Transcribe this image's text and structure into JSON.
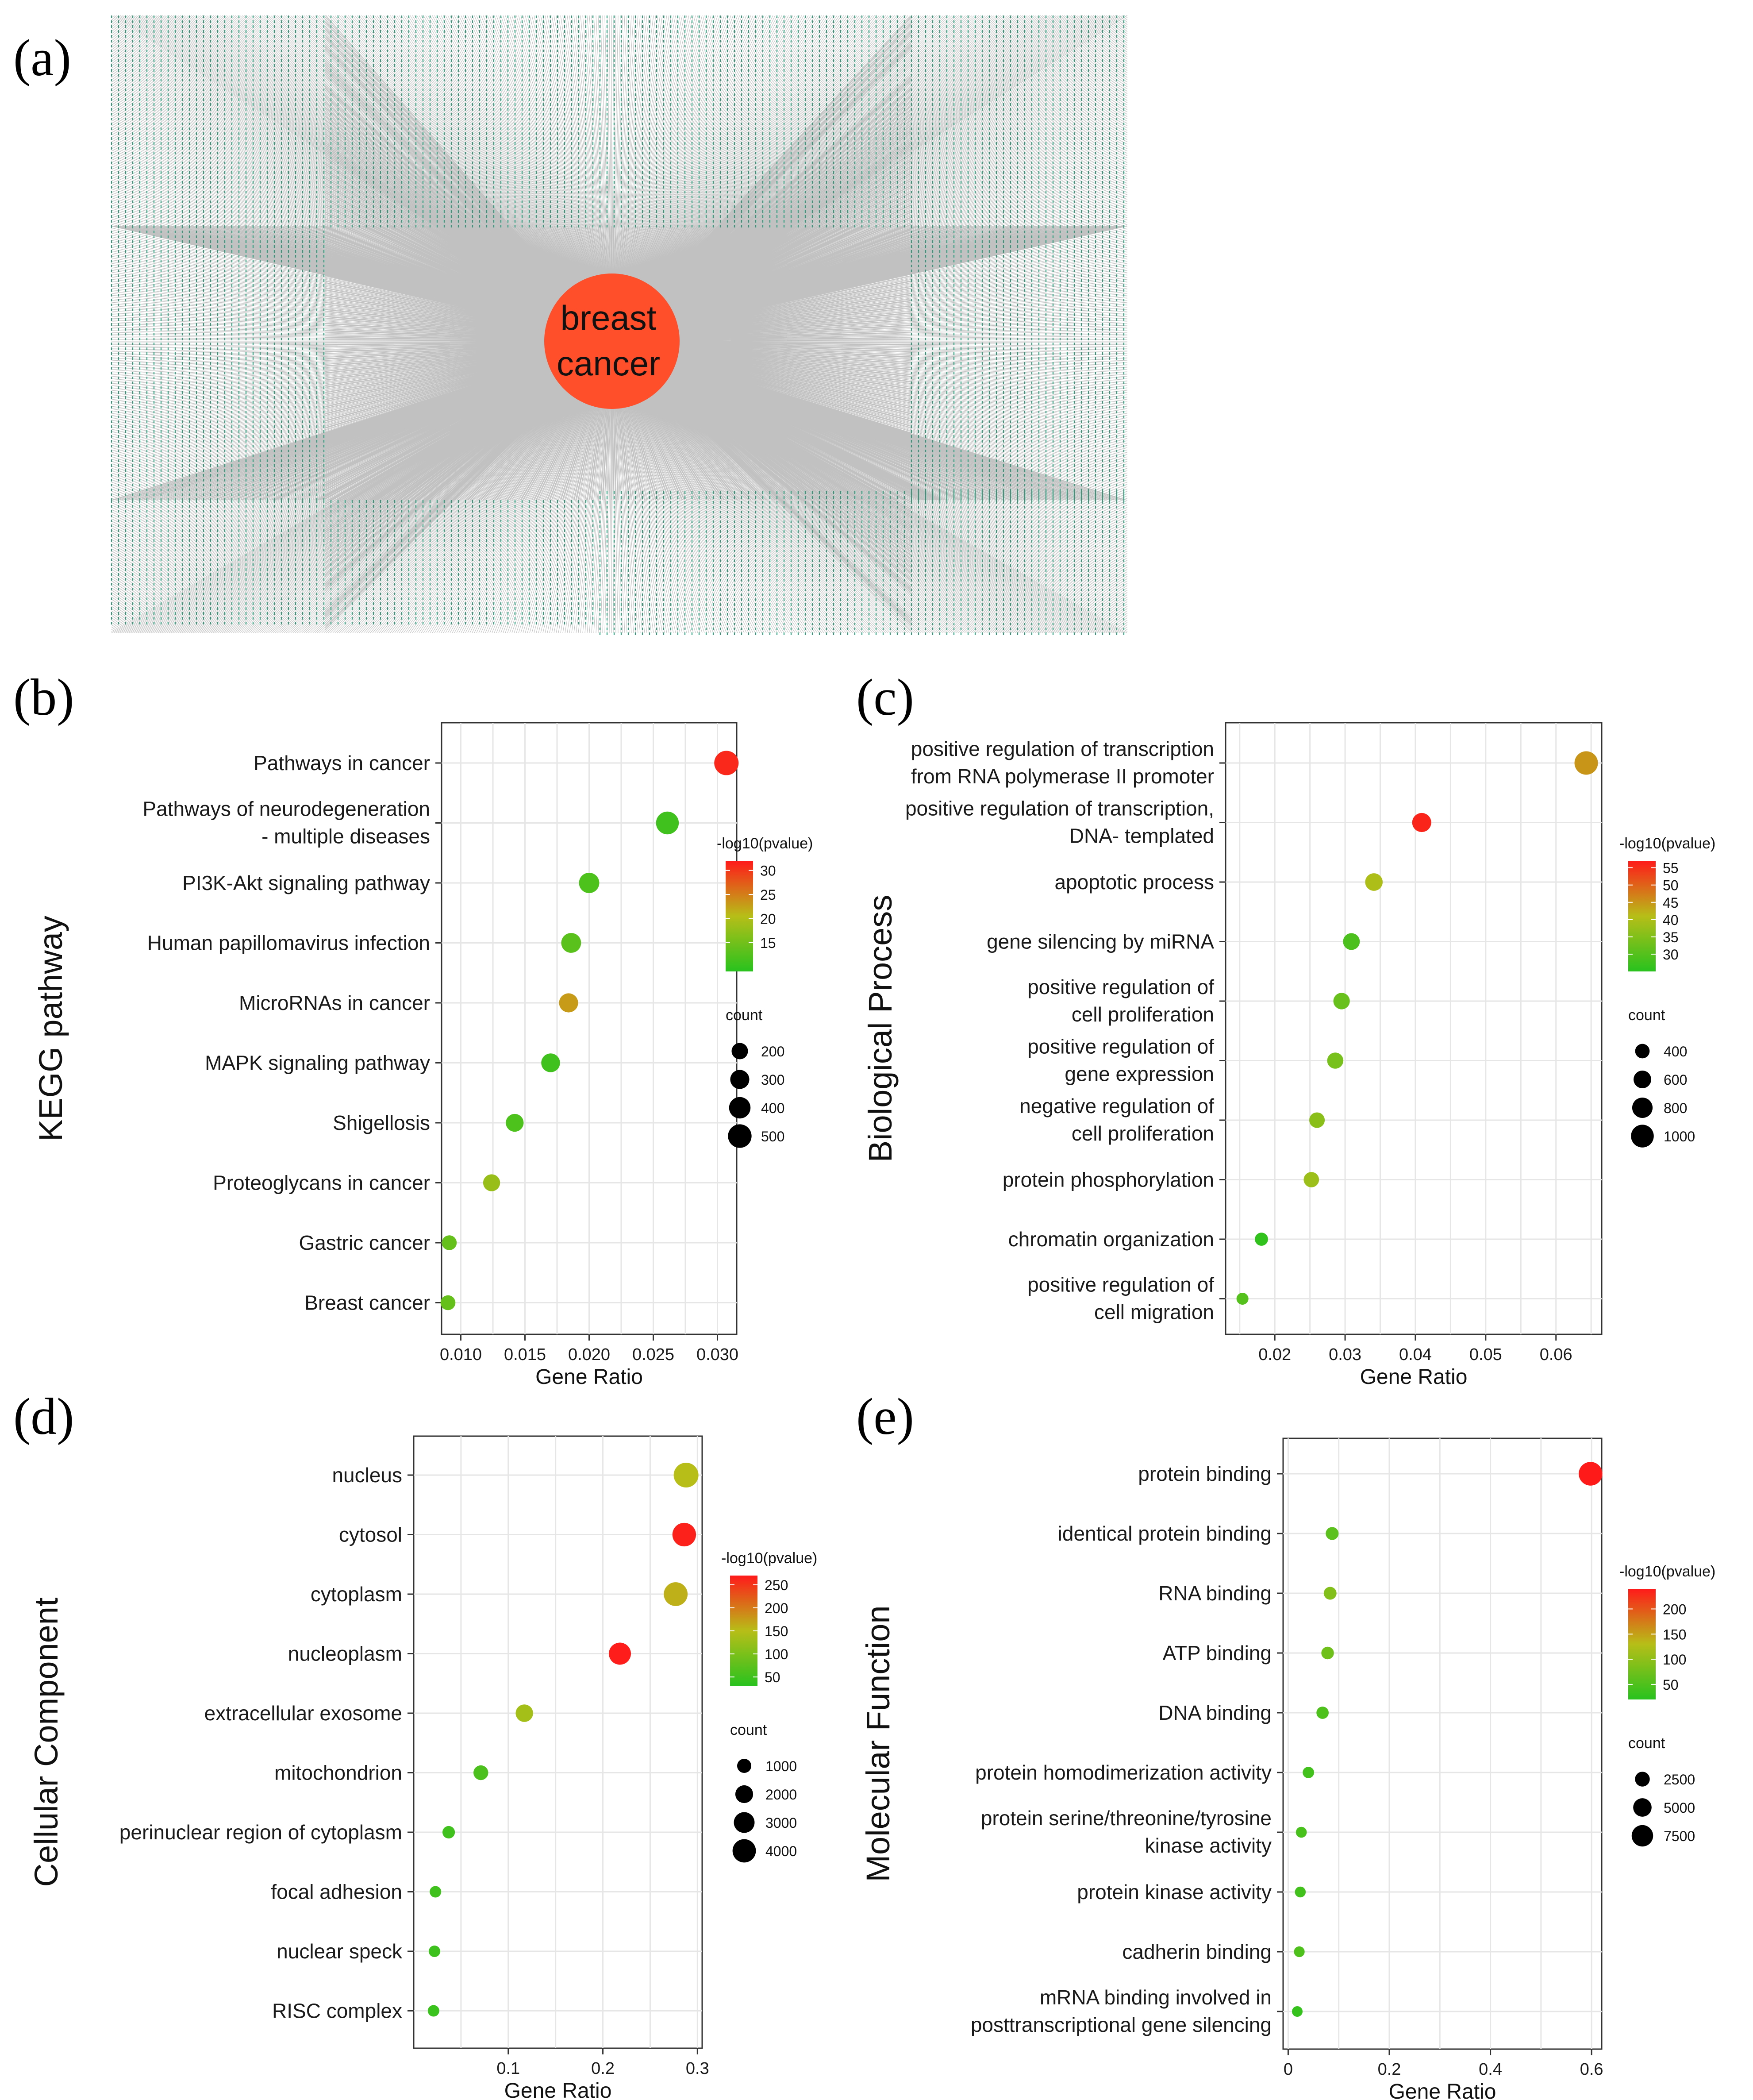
{
  "panel_a": {
    "letter": "(a)",
    "hub_label_line1": "breast",
    "hub_label_line2": "cancer",
    "hub_color": "#FF4E2A"
  },
  "colors": {
    "low": "#28C21E",
    "mid": "#B7BE18",
    "high": "#FF1A1A",
    "grid": "#E6E6E6"
  },
  "chart_data": [
    {
      "panel": "(b)",
      "type": "scatter",
      "ylabel": "KEGG pathway",
      "xlabel": "Gene Ratio",
      "xlim": [
        0.0085,
        0.0315
      ],
      "xticks": [
        0.01,
        0.015,
        0.02,
        0.025,
        0.03
      ],
      "xtick_labels": [
        "0.010",
        "0.015",
        "0.020",
        "0.025",
        "0.030"
      ],
      "color_title": "-log10(pvalue)",
      "color_range": [
        9,
        32
      ],
      "color_ticks": [
        15,
        20,
        25,
        30
      ],
      "size_title": "count",
      "size_range": [
        80,
        560
      ],
      "size_ticks": [
        200,
        300,
        400,
        500
      ],
      "points": [
        {
          "label": [
            "Pathways in cancer"
          ],
          "x": 0.0307,
          "count": 540,
          "p": 31
        },
        {
          "label": [
            "Pathways of neurodegeneration",
            "- multiple diseases"
          ],
          "x": 0.0261,
          "count": 460,
          "p": 11
        },
        {
          "label": [
            "PI3K-Akt signaling pathway"
          ],
          "x": 0.02,
          "count": 350,
          "p": 12
        },
        {
          "label": [
            "Human papillomavirus infection"
          ],
          "x": 0.0186,
          "count": 330,
          "p": 13
        },
        {
          "label": [
            "MicroRNAs in cancer"
          ],
          "x": 0.0184,
          "count": 300,
          "p": 23
        },
        {
          "label": [
            "MAPK signaling pathway"
          ],
          "x": 0.017,
          "count": 290,
          "p": 11
        },
        {
          "label": [
            "Shigellosis"
          ],
          "x": 0.0142,
          "count": 250,
          "p": 12
        },
        {
          "label": [
            "Proteoglycans in cancer"
          ],
          "x": 0.0124,
          "count": 220,
          "p": 18
        },
        {
          "label": [
            "Gastric cancer"
          ],
          "x": 0.0091,
          "count": 150,
          "p": 14
        },
        {
          "label": [
            "Breast cancer"
          ],
          "x": 0.009,
          "count": 150,
          "p": 14
        }
      ]
    },
    {
      "panel": "(c)",
      "type": "scatter",
      "ylabel": "Biological Process",
      "xlabel": "Gene Ratio",
      "xlim": [
        0.013,
        0.0665
      ],
      "xticks": [
        0.02,
        0.03,
        0.04,
        0.05,
        0.06
      ],
      "xtick_labels": [
        "0.02",
        "0.03",
        "0.04",
        "0.05",
        "0.06"
      ],
      "color_title": "-log10(pvalue)",
      "color_range": [
        25,
        57
      ],
      "color_ticks": [
        30,
        35,
        40,
        45,
        50,
        55
      ],
      "size_title": "count",
      "size_range": [
        250,
        1100
      ],
      "size_ticks": [
        400,
        600,
        800,
        1000
      ],
      "points": [
        {
          "label": [
            "positive regulation of transcription",
            "from RNA polymerase II promoter"
          ],
          "x": 0.0643,
          "count": 1060,
          "p": 45
        },
        {
          "label": [
            "positive regulation of transcription,",
            "DNA- templated"
          ],
          "x": 0.0409,
          "count": 700,
          "p": 56
        },
        {
          "label": [
            "apoptotic process"
          ],
          "x": 0.0341,
          "count": 590,
          "p": 40
        },
        {
          "label": [
            "gene silencing by miRNA"
          ],
          "x": 0.0309,
          "count": 540,
          "p": 29
        },
        {
          "label": [
            "positive regulation of",
            "cell proliferation"
          ],
          "x": 0.0295,
          "count": 520,
          "p": 32
        },
        {
          "label": [
            "positive regulation of",
            "gene expression"
          ],
          "x": 0.0286,
          "count": 500,
          "p": 34
        },
        {
          "label": [
            "negative regulation of",
            "cell proliferation"
          ],
          "x": 0.026,
          "count": 460,
          "p": 36
        },
        {
          "label": [
            "protein phosphorylation"
          ],
          "x": 0.0252,
          "count": 450,
          "p": 38
        },
        {
          "label": [
            "chromatin organization"
          ],
          "x": 0.0181,
          "count": 330,
          "p": 26
        },
        {
          "label": [
            "positive regulation of",
            "cell migration"
          ],
          "x": 0.0154,
          "count": 270,
          "p": 30
        }
      ]
    },
    {
      "panel": "(d)",
      "type": "scatter",
      "ylabel": "Cellular Component",
      "xlabel": "Gene Ratio",
      "xlim": [
        0.0,
        0.305
      ],
      "xticks": [
        0.1,
        0.2,
        0.3
      ],
      "xtick_labels": [
        "0.1",
        "0.2",
        "0.3"
      ],
      "color_title": "-log10(pvalue)",
      "color_range": [
        30,
        270
      ],
      "color_ticks": [
        50,
        100,
        150,
        200,
        250
      ],
      "size_title": "count",
      "size_range": [
        400,
        4600
      ],
      "size_ticks": [
        1000,
        2000,
        3000,
        4000
      ],
      "points": [
        {
          "label": [
            "nucleus"
          ],
          "x": 0.288,
          "count": 4600,
          "p": 150
        },
        {
          "label": [
            "cytosol"
          ],
          "x": 0.286,
          "count": 4100,
          "p": 265
        },
        {
          "label": [
            "cytoplasm"
          ],
          "x": 0.277,
          "count": 4200,
          "p": 160
        },
        {
          "label": [
            "nucleoplasm"
          ],
          "x": 0.218,
          "count": 3500,
          "p": 268
        },
        {
          "label": [
            "extracellular exosome"
          ],
          "x": 0.117,
          "count": 1900,
          "p": 135
        },
        {
          "label": [
            "mitochondrion"
          ],
          "x": 0.071,
          "count": 1150,
          "p": 60
        },
        {
          "label": [
            "perinuclear region of cytoplasm"
          ],
          "x": 0.037,
          "count": 600,
          "p": 50
        },
        {
          "label": [
            "focal adhesion"
          ],
          "x": 0.023,
          "count": 370,
          "p": 50
        },
        {
          "label": [
            "nuclear speck"
          ],
          "x": 0.022,
          "count": 360,
          "p": 48
        },
        {
          "label": [
            "RISC complex"
          ],
          "x": 0.021,
          "count": 350,
          "p": 45
        }
      ]
    },
    {
      "panel": "(e)",
      "type": "scatter",
      "ylabel": "Molecular Function",
      "xlabel": "Gene Ratio",
      "xlim": [
        -0.01,
        0.62
      ],
      "xticks": [
        0.0,
        0.2,
        0.4,
        0.6
      ],
      "xtick_labels": [
        "0",
        "0.2",
        "0.4",
        "0.6"
      ],
      "color_title": "-log10(pvalue)",
      "color_range": [
        20,
        240
      ],
      "color_ticks": [
        50,
        100,
        150,
        200
      ],
      "size_title": "count",
      "size_range": [
        300,
        9800
      ],
      "size_ticks": [
        2500,
        5000,
        7500
      ],
      "points": [
        {
          "label": [
            "protein binding"
          ],
          "x": 0.598,
          "count": 9600,
          "p": 240
        },
        {
          "label": [
            "identical protein binding"
          ],
          "x": 0.087,
          "count": 1400,
          "p": 60
        },
        {
          "label": [
            "RNA binding"
          ],
          "x": 0.083,
          "count": 1350,
          "p": 90
        },
        {
          "label": [
            "ATP binding"
          ],
          "x": 0.078,
          "count": 1250,
          "p": 75
        },
        {
          "label": [
            "DNA binding"
          ],
          "x": 0.068,
          "count": 1100,
          "p": 50
        },
        {
          "label": [
            "protein homodimerization activity"
          ],
          "x": 0.04,
          "count": 650,
          "p": 40
        },
        {
          "label": [
            "protein serine/threonine/tyrosine",
            "kinase activity"
          ],
          "x": 0.026,
          "count": 420,
          "p": 45
        },
        {
          "label": [
            "protein kinase activity"
          ],
          "x": 0.024,
          "count": 400,
          "p": 40
        },
        {
          "label": [
            "cadherin binding"
          ],
          "x": 0.022,
          "count": 360,
          "p": 50
        },
        {
          "label": [
            "mRNA binding involved in",
            "posttranscriptional gene silencing"
          ],
          "x": 0.018,
          "count": 290,
          "p": 30
        }
      ]
    }
  ]
}
